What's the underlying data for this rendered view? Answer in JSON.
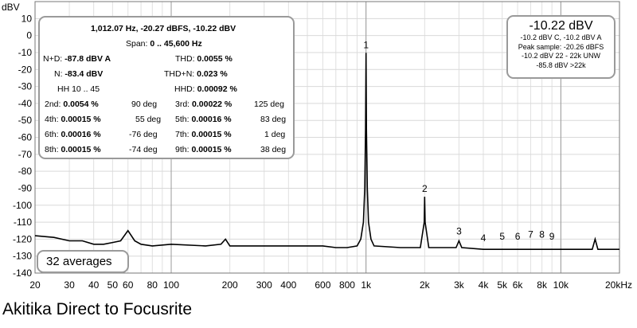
{
  "chart_data": {
    "type": "line",
    "xlabel": "",
    "ylabel": "dBV",
    "xscale": "log",
    "xlim": [
      20,
      20000
    ],
    "ylim": [
      -140,
      20
    ],
    "x_ticks": [
      {
        "v": 20,
        "label": "20"
      },
      {
        "v": 30,
        "label": "30"
      },
      {
        "v": 40,
        "label": "40"
      },
      {
        "v": 50,
        "label": "50"
      },
      {
        "v": 60,
        "label": "60"
      },
      {
        "v": 80,
        "label": "80"
      },
      {
        "v": 100,
        "label": "100"
      },
      {
        "v": 200,
        "label": "200"
      },
      {
        "v": 300,
        "label": "300"
      },
      {
        "v": 400,
        "label": "400"
      },
      {
        "v": 600,
        "label": "600"
      },
      {
        "v": 800,
        "label": "800"
      },
      {
        "v": 1000,
        "label": "1k"
      },
      {
        "v": 2000,
        "label": "2k"
      },
      {
        "v": 3000,
        "label": "3k"
      },
      {
        "v": 4000,
        "label": "4k"
      },
      {
        "v": 5000,
        "label": "5k"
      },
      {
        "v": 6000,
        "label": "6k"
      },
      {
        "v": 8000,
        "label": "8k"
      },
      {
        "v": 10000,
        "label": "10k"
      },
      {
        "v": 20000,
        "label": "20kHz"
      }
    ],
    "y_ticks": [
      10,
      0,
      -10,
      -20,
      -30,
      -40,
      -50,
      -60,
      -70,
      -80,
      -90,
      -100,
      -110,
      -120,
      -130,
      -140
    ],
    "y_ticks_top_label": "dBV",
    "harmonic_markers": [
      {
        "label": "1",
        "x": 1000,
        "y": -10.2
      },
      {
        "label": "2",
        "x": 2000,
        "y": -95
      },
      {
        "label": "3",
        "x": 3000,
        "y": -120
      },
      {
        "label": "4",
        "x": 4000,
        "y": -124
      },
      {
        "label": "5",
        "x": 5000,
        "y": -123
      },
      {
        "label": "6",
        "x": 6000,
        "y": -123
      },
      {
        "label": "7",
        "x": 7000,
        "y": -122
      },
      {
        "label": "8",
        "x": 8000,
        "y": -122
      },
      {
        "label": "9",
        "x": 9000,
        "y": -123
      }
    ],
    "series": [
      {
        "color": "#000000",
        "points": [
          [
            20,
            -118
          ],
          [
            25,
            -119
          ],
          [
            30,
            -121
          ],
          [
            35,
            -121
          ],
          [
            40,
            -123
          ],
          [
            45,
            -123
          ],
          [
            50,
            -122
          ],
          [
            55,
            -121
          ],
          [
            60,
            -115
          ],
          [
            65,
            -121
          ],
          [
            70,
            -123
          ],
          [
            80,
            -124
          ],
          [
            100,
            -123
          ],
          [
            150,
            -124
          ],
          [
            180,
            -123
          ],
          [
            190,
            -120
          ],
          [
            200,
            -124
          ],
          [
            300,
            -124
          ],
          [
            400,
            -124
          ],
          [
            500,
            -124
          ],
          [
            600,
            -124
          ],
          [
            700,
            -125
          ],
          [
            800,
            -125
          ],
          [
            900,
            -124
          ],
          [
            940,
            -120
          ],
          [
            970,
            -110
          ],
          [
            985,
            -90
          ],
          [
            995,
            -55
          ],
          [
            1000,
            -10.2
          ],
          [
            1005,
            -55
          ],
          [
            1015,
            -90
          ],
          [
            1030,
            -110
          ],
          [
            1060,
            -120
          ],
          [
            1100,
            -124
          ],
          [
            1500,
            -125
          ],
          [
            1900,
            -125
          ],
          [
            1990,
            -110
          ],
          [
            2000,
            -95
          ],
          [
            2010,
            -110
          ],
          [
            2100,
            -125
          ],
          [
            2900,
            -125
          ],
          [
            3000,
            -121
          ],
          [
            3100,
            -125
          ],
          [
            4000,
            -126
          ],
          [
            5000,
            -126
          ],
          [
            6000,
            -126
          ],
          [
            8000,
            -126
          ],
          [
            10000,
            -126
          ],
          [
            13000,
            -126
          ],
          [
            14500,
            -126
          ],
          [
            15000,
            -120
          ],
          [
            15500,
            -126
          ],
          [
            20000,
            -126
          ]
        ]
      }
    ]
  },
  "stats": {
    "header": "1,012.07 Hz, -20.27 dBFS, -10.22 dBV",
    "span_label": "Span:",
    "span_value": "0 .. 45,600 Hz",
    "nd_label": "N+D:",
    "nd_value": "-87.8 dBV A",
    "thd_label": "THD:",
    "thd_value": "0.0055 %",
    "n_label": "N:",
    "n_value": "-83.4 dBV",
    "thdn_label": "THD+N:",
    "thdn_value": "0.023 %",
    "hh_label": "HH 10 .. 45",
    "hhd_label": "HHD:",
    "hhd_value": "0.00092 %",
    "harmonics": [
      {
        "l1": "2nd:",
        "v1": "0.0054 %",
        "d1": "90 deg",
        "l2": "3rd:",
        "v2": "0.00022 %",
        "d2": "125 deg"
      },
      {
        "l1": "4th:",
        "v1": "0.00015 %",
        "d1": "55 deg",
        "l2": "5th:",
        "v2": "0.00016 %",
        "d2": "83 deg"
      },
      {
        "l1": "6th:",
        "v1": "0.00016 %",
        "d1": "-76 deg",
        "l2": "7th:",
        "v2": "0.00015 %",
        "d2": "1 deg"
      },
      {
        "l1": "8th:",
        "v1": "0.00015 %",
        "d1": "-74 deg",
        "l2": "9th:",
        "v2": "0.00015 %",
        "d2": "38 deg"
      }
    ]
  },
  "level": {
    "main": "-10.22 dBV",
    "line1": "-10.2 dBV C, -10.2 dBV A",
    "line2": "Peak sample: -20.26 dBFS",
    "line3": "-10.2 dBV 22 - 22k UNW",
    "line4": "-85.8 dBV >22k"
  },
  "averages": "32 averages",
  "caption": "Akitika Direct to Focusrite"
}
